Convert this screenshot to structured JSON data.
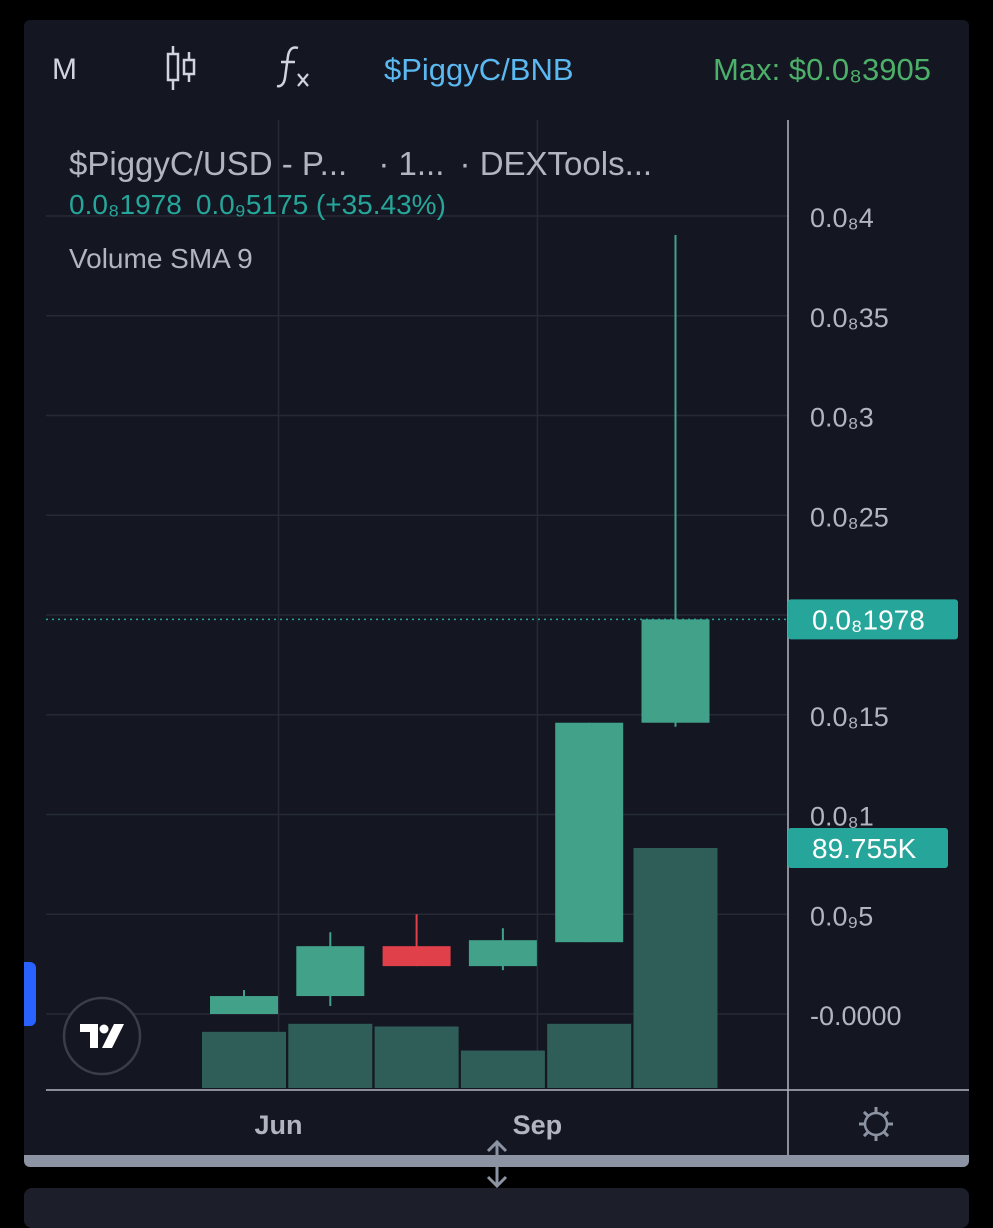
{
  "toolbar": {
    "interval": "M",
    "candle_icon": "candlestick-icon",
    "fx_icon": "indicators-fx-icon",
    "pair": "$PiggyC/BNB",
    "max_label": "Max: $0.0₈3905"
  },
  "legend": {
    "title": "$PiggyC/USD - P...",
    "interval": "· 1...",
    "source": "· DEXTools...",
    "price": "0.0₈1978",
    "change": "0.0₉5175 (+35.43%)",
    "volume_indicator": "Volume SMA 9"
  },
  "colors": {
    "background": "#141722",
    "up": "#26a69a",
    "up_candle": "#42a189",
    "down": "#e0404a",
    "volume": "#2f5e58",
    "grid": "#262a36",
    "axis_text": "#b2b5be",
    "pair_blue": "#5bb8f0",
    "max_green": "#4caf6a"
  },
  "chart_data": {
    "type": "candlestick",
    "title": "$PiggyC/USD - P...",
    "y_unit_note": "price in units of 1e-8 USD (0.0₈4 = 0.000000004)",
    "y_range": [
      -0.75,
      3.95
    ],
    "y_ticks": [
      {
        "value": 4,
        "label": "0.0₈4"
      },
      {
        "value": 3.5,
        "label": "0.0₈35"
      },
      {
        "value": 3,
        "label": "0.0₈3"
      },
      {
        "value": 2.5,
        "label": "0.0₈25"
      },
      {
        "value": 2,
        "label": "0.0₈2"
      },
      {
        "value": 1.5,
        "label": "0.0₈15"
      },
      {
        "value": 1,
        "label": "0.0₈1"
      },
      {
        "value": 0.5,
        "label": "0.0₉5"
      },
      {
        "value": 0,
        "label": "-0.0000"
      }
    ],
    "x_labels": [
      {
        "index": 0.4,
        "label": "Jun"
      },
      {
        "index": 3.4,
        "label": "Sep"
      }
    ],
    "candles": [
      {
        "open": 0.0,
        "close": 0.09,
        "high": 0.12,
        "low": 0.0
      },
      {
        "open": 0.09,
        "close": 0.34,
        "high": 0.41,
        "low": 0.04
      },
      {
        "open": 0.34,
        "close": 0.24,
        "high": 0.5,
        "low": 0.24
      },
      {
        "open": 0.24,
        "close": 0.37,
        "high": 0.43,
        "low": 0.22
      },
      {
        "open": 0.36,
        "close": 1.46,
        "high": 1.46,
        "low": 0.36
      },
      {
        "open": 1.46,
        "close": 1.978,
        "high": 3.905,
        "low": 1.44
      }
    ],
    "volume": [
      21000,
      24000,
      23000,
      14000,
      24000,
      89755
    ],
    "volume_max": 89755,
    "last_price_label": "0.0₈1978",
    "last_volume_label": "89.755K"
  }
}
